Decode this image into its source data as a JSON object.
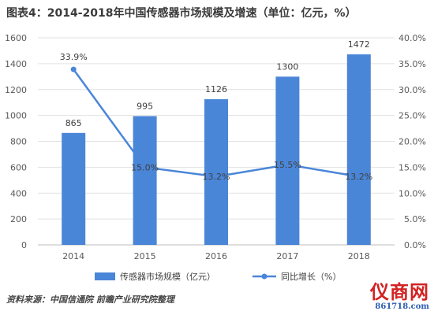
{
  "title": "图表4：2014-2018年中国传感器市场规模及增速（单位：亿元，%）",
  "source": "资料来源：中国信通院 前瞻产业研究院整理",
  "brand": {
    "name": "仪商网",
    "url": "861718.com"
  },
  "colors": {
    "bar": "#4a86d8",
    "line": "#4a86d8",
    "grid": "#e2e2e2",
    "text": "#595959"
  },
  "chart_data": {
    "type": "bar",
    "categories": [
      "2014",
      "2015",
      "2016",
      "2017",
      "2018"
    ],
    "series": [
      {
        "name": "传感器市场规模（亿元）",
        "type": "bar",
        "axis": "left",
        "values": [
          865,
          995,
          1126,
          1300,
          1472
        ]
      },
      {
        "name": "同比增长（%）",
        "type": "line",
        "axis": "right",
        "values": [
          33.9,
          15.0,
          13.2,
          15.5,
          13.2
        ]
      }
    ],
    "bar_labels": [
      "865",
      "995",
      "1126",
      "1300",
      "1472"
    ],
    "line_labels": [
      "33.9%",
      "15.0%",
      "13.2%",
      "15.5%",
      "13.2%"
    ],
    "ylim_left": [
      0,
      1600
    ],
    "yticks_left": [
      "0",
      "200",
      "400",
      "600",
      "800",
      "1000",
      "1200",
      "1400",
      "1600"
    ],
    "ylim_right": [
      0,
      40
    ],
    "yticks_right": [
      "0.0%",
      "5.0%",
      "10.0%",
      "15.0%",
      "20.0%",
      "25.0%",
      "30.0%",
      "35.0%",
      "40.0%"
    ],
    "grid": true,
    "legend_position": "bottom"
  }
}
